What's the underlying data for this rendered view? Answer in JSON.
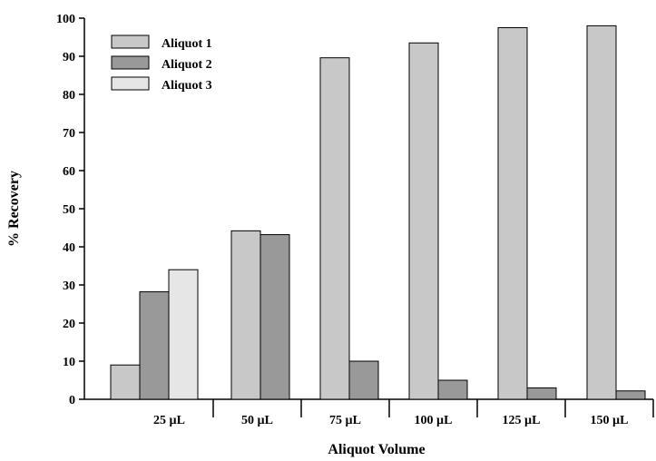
{
  "chart_data": {
    "type": "bar",
    "title": "",
    "xlabel": "Aliquot Volume",
    "ylabel": "% Recovery",
    "ylim": [
      0,
      100
    ],
    "yticks": [
      0,
      10,
      20,
      30,
      40,
      50,
      60,
      70,
      80,
      90,
      100
    ],
    "categories": [
      "25 µL",
      "50 µL",
      "75 µL",
      "100 µL",
      "125 µL",
      "150 µL"
    ],
    "legend_position": "top-left",
    "grid": false,
    "series": [
      {
        "name": "Aliquot 1",
        "color": "#c8c8c8",
        "values": [
          9,
          44.2,
          89.6,
          93.5,
          97.5,
          98
        ]
      },
      {
        "name": "Aliquot 2",
        "color": "#999999",
        "values": [
          28.2,
          43.2,
          10,
          5,
          3,
          2.2
        ]
      },
      {
        "name": "Aliquot 3",
        "color": "#e6e6e6",
        "values": [
          34,
          null,
          null,
          null,
          null,
          null
        ]
      }
    ]
  }
}
